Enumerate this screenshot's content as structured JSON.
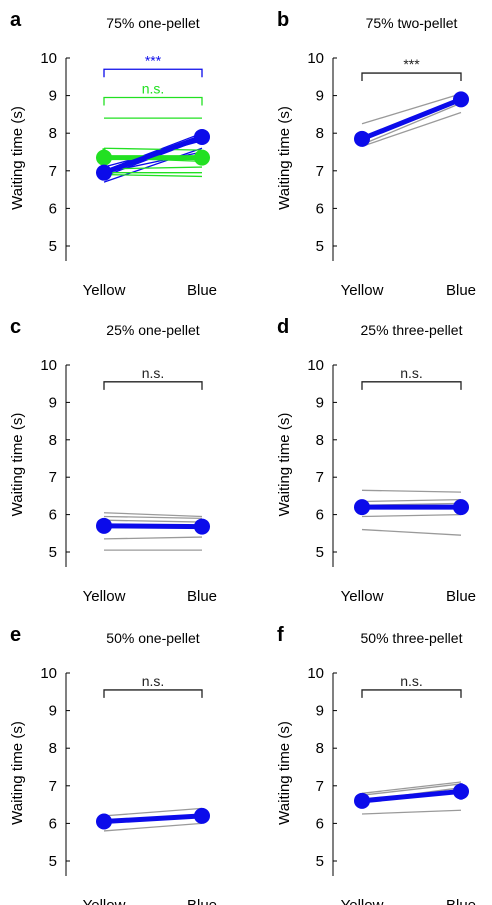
{
  "figure": {
    "x_categories": [
      "Yellow",
      "Blue"
    ],
    "ylabel": "Waiting time (s)",
    "yticks": [
      5,
      6,
      7,
      8,
      9,
      10
    ]
  },
  "colors": {
    "blue": "#0b0bea",
    "green": "#22e022",
    "gray": "#9a9a9a",
    "bracket": "#222222",
    "axis": "#000000"
  },
  "chart_data": [
    {
      "panel": "a",
      "title": "75% one-pellet",
      "type": "line",
      "categories": [
        "Yellow",
        "Blue"
      ],
      "ylabel": "Waiting time (s)",
      "ylim": [
        4.6,
        10
      ],
      "brackets": [
        {
          "label": "***",
          "color": "blue",
          "y": 9.7
        },
        {
          "label": "n.s.",
          "color": "green",
          "y": 8.95
        }
      ],
      "individual": [
        {
          "color": "blue",
          "values": [
            6.7,
            7.6
          ]
        },
        {
          "color": "blue",
          "values": [
            6.85,
            7.85
          ]
        },
        {
          "color": "blue",
          "values": [
            7.0,
            8.0
          ]
        },
        {
          "color": "blue",
          "values": [
            7.1,
            7.8
          ]
        },
        {
          "color": "blue",
          "values": [
            6.95,
            7.5
          ]
        },
        {
          "color": "green",
          "values": [
            8.4,
            8.4
          ]
        },
        {
          "color": "green",
          "values": [
            7.35,
            7.25
          ]
        },
        {
          "color": "green",
          "values": [
            7.05,
            7.1
          ]
        },
        {
          "color": "green",
          "values": [
            6.95,
            6.95
          ]
        },
        {
          "color": "green",
          "values": [
            6.9,
            6.85
          ]
        },
        {
          "color": "green",
          "values": [
            7.6,
            7.55
          ]
        }
      ],
      "means": [
        {
          "color": "green",
          "values": [
            7.35,
            7.35
          ],
          "errors": [
            0.25,
            0.2
          ]
        },
        {
          "color": "blue",
          "values": [
            6.95,
            7.9
          ],
          "errors": [
            0.1,
            0.1
          ]
        }
      ]
    },
    {
      "panel": "b",
      "title": "75% two-pellet",
      "type": "line",
      "categories": [
        "Yellow",
        "Blue"
      ],
      "ylabel": "Waiting time (s)",
      "ylim": [
        4.6,
        10
      ],
      "brackets": [
        {
          "label": "***",
          "color": "bracket",
          "y": 9.6
        }
      ],
      "individual": [
        {
          "color": "gray",
          "values": [
            8.25,
            9.05
          ]
        },
        {
          "color": "gray",
          "values": [
            7.8,
            8.95
          ]
        },
        {
          "color": "gray",
          "values": [
            7.7,
            8.8
          ]
        },
        {
          "color": "gray",
          "values": [
            7.65,
            8.55
          ]
        }
      ],
      "means": [
        {
          "color": "blue",
          "values": [
            7.85,
            8.9
          ],
          "errors": [
            0.06,
            0.06
          ]
        }
      ]
    },
    {
      "panel": "c",
      "title": "25% one-pellet",
      "type": "line",
      "categories": [
        "Yellow",
        "Blue"
      ],
      "ylabel": "Waiting time (s)",
      "ylim": [
        4.6,
        10
      ],
      "brackets": [
        {
          "label": "n.s.",
          "color": "bracket",
          "y": 9.55
        }
      ],
      "individual": [
        {
          "color": "gray",
          "values": [
            6.05,
            5.95
          ]
        },
        {
          "color": "gray",
          "values": [
            5.95,
            5.9
          ]
        },
        {
          "color": "gray",
          "values": [
            5.85,
            5.8
          ]
        },
        {
          "color": "gray",
          "values": [
            5.35,
            5.4
          ]
        },
        {
          "color": "gray",
          "values": [
            5.05,
            5.05
          ]
        }
      ],
      "means": [
        {
          "color": "blue",
          "values": [
            5.7,
            5.68
          ],
          "errors": [
            0.07,
            0.07
          ]
        }
      ]
    },
    {
      "panel": "d",
      "title": "25% three-pellet",
      "type": "line",
      "categories": [
        "Yellow",
        "Blue"
      ],
      "ylabel": "Waiting time (s)",
      "ylim": [
        4.6,
        10
      ],
      "brackets": [
        {
          "label": "n.s.",
          "color": "bracket",
          "y": 9.55
        }
      ],
      "individual": [
        {
          "color": "gray",
          "values": [
            6.65,
            6.6
          ]
        },
        {
          "color": "gray",
          "values": [
            6.35,
            6.4
          ]
        },
        {
          "color": "gray",
          "values": [
            6.25,
            6.3
          ]
        },
        {
          "color": "gray",
          "values": [
            5.95,
            6.0
          ]
        },
        {
          "color": "gray",
          "values": [
            5.6,
            5.45
          ]
        }
      ],
      "means": [
        {
          "color": "blue",
          "values": [
            6.2,
            6.2
          ],
          "errors": [
            0.05,
            0.05
          ]
        }
      ]
    },
    {
      "panel": "e",
      "title": "50% one-pellet",
      "type": "line",
      "categories": [
        "Yellow",
        "Blue"
      ],
      "ylabel": "Waiting time (s)",
      "ylim": [
        4.6,
        10
      ],
      "brackets": [
        {
          "label": "n.s.",
          "color": "bracket",
          "y": 9.55
        }
      ],
      "individual": [
        {
          "color": "gray",
          "values": [
            6.2,
            6.4
          ]
        },
        {
          "color": "gray",
          "values": [
            6.05,
            6.2
          ]
        },
        {
          "color": "gray",
          "values": [
            5.8,
            6.0
          ]
        }
      ],
      "means": [
        {
          "color": "blue",
          "values": [
            6.05,
            6.2
          ],
          "errors": [
            0.05,
            0.05
          ]
        }
      ]
    },
    {
      "panel": "f",
      "title": "50% three-pellet",
      "type": "line",
      "categories": [
        "Yellow",
        "Blue"
      ],
      "ylabel": "Waiting time (s)",
      "ylim": [
        4.6,
        10
      ],
      "brackets": [
        {
          "label": "n.s.",
          "color": "bracket",
          "y": 9.55
        }
      ],
      "individual": [
        {
          "color": "gray",
          "values": [
            6.8,
            7.1
          ]
        },
        {
          "color": "gray",
          "values": [
            6.75,
            7.05
          ]
        },
        {
          "color": "gray",
          "values": [
            6.6,
            6.95
          ]
        },
        {
          "color": "gray",
          "values": [
            6.25,
            6.35
          ]
        }
      ],
      "means": [
        {
          "color": "blue",
          "values": [
            6.6,
            6.85
          ],
          "errors": [
            0.08,
            0.22
          ]
        }
      ]
    }
  ]
}
